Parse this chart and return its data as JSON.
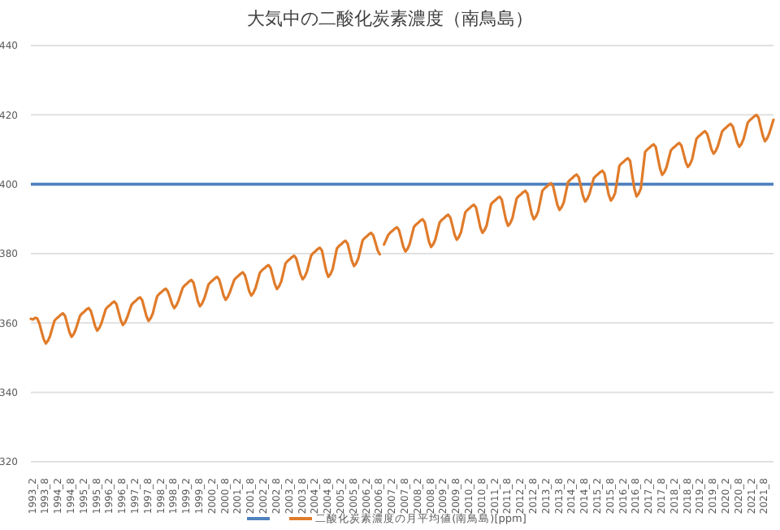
{
  "chart_data": {
    "type": "line",
    "title": "大気中の二酸化炭素濃度（南鳥島）",
    "categories": [
      null,
      "1993_2",
      null,
      null,
      null,
      null,
      null,
      "1993_8",
      null,
      null,
      null,
      null,
      null,
      "1994_2",
      null,
      null,
      null,
      null,
      null,
      "1994_8",
      null,
      null,
      null,
      null,
      null,
      "1995_2",
      null,
      null,
      null,
      null,
      null,
      "1995_8",
      null,
      null,
      null,
      null,
      null,
      "1996_2",
      null,
      null,
      null,
      null,
      null,
      "1996_8",
      null,
      null,
      null,
      null,
      null,
      "1997_2",
      null,
      null,
      null,
      null,
      null,
      "1997_8",
      null,
      null,
      null,
      null,
      null,
      "1998_2",
      null,
      null,
      null,
      null,
      null,
      "1998_8",
      null,
      null,
      null,
      null,
      null,
      "1999_2",
      null,
      null,
      null,
      null,
      null,
      "1999_8",
      null,
      null,
      null,
      null,
      null,
      "2000_2",
      null,
      null,
      null,
      null,
      null,
      "2000_8",
      null,
      null,
      null,
      null,
      null,
      "2001_2",
      null,
      null,
      null,
      null,
      null,
      "2001_8",
      null,
      null,
      null,
      null,
      null,
      "2002_2",
      null,
      null,
      null,
      null,
      null,
      "2002_8",
      null,
      null,
      null,
      null,
      null,
      "2003_2",
      null,
      null,
      null,
      null,
      null,
      "2003_8",
      null,
      null,
      null,
      null,
      null,
      "2004_2",
      null,
      null,
      null,
      null,
      null,
      "2004_8",
      null,
      null,
      null,
      null,
      null,
      "2005_2",
      null,
      null,
      null,
      null,
      null,
      "2005_8",
      null,
      null,
      null,
      null,
      null,
      "2006_2",
      null,
      null,
      null,
      null,
      null,
      "2006_8",
      null,
      null,
      null,
      null,
      null,
      "2007_2",
      null,
      null,
      null,
      null,
      null,
      "2007_8",
      null,
      null,
      null,
      null,
      null,
      "2008_2",
      null,
      null,
      null,
      null,
      null,
      "2008_8",
      null,
      null,
      null,
      null,
      null,
      "2009_2",
      null,
      null,
      null,
      null,
      null,
      "2009_8",
      null,
      null,
      null,
      null,
      null,
      "2010_2",
      null,
      null,
      null,
      null,
      null,
      "2010_8",
      null,
      null,
      null,
      null,
      null,
      "2011_2",
      null,
      null,
      null,
      null,
      null,
      "2011_8",
      null,
      null,
      null,
      null,
      null,
      "2012_2",
      null,
      null,
      null,
      null,
      null,
      "2012_8",
      null,
      null,
      null,
      null,
      null,
      "2013_2",
      null,
      null,
      null,
      null,
      null,
      "2013_8",
      null,
      null,
      null,
      null,
      null,
      "2014_2",
      null,
      null,
      null,
      null,
      null,
      "2014_8",
      null,
      null,
      null,
      null,
      null,
      "2015_2",
      null,
      null,
      null,
      null,
      null,
      "2015_8",
      null,
      null,
      null,
      null,
      null,
      "2016_2",
      null,
      null,
      null,
      null,
      null,
      "2016_8",
      null,
      null,
      null,
      null,
      null,
      "2017_2",
      null,
      null,
      null,
      null,
      null,
      "2017_8",
      null,
      null,
      null,
      null,
      null,
      "2018_2",
      null,
      null,
      null,
      null,
      null,
      "2018_8",
      null,
      null,
      null,
      null,
      null,
      "2019_2",
      null,
      null,
      null,
      null,
      null,
      "2019_8",
      null,
      null,
      null,
      null,
      null,
      "2020_2",
      null,
      null,
      null,
      null,
      null,
      "2020_8",
      null,
      null,
      null,
      null,
      null,
      "2021_2",
      null,
      null,
      null,
      null,
      null,
      "2021_8",
      null,
      null,
      null,
      null
    ],
    "series": [
      {
        "name": "二酸化炭素濃度の月平均値(南鳥島)[ppm]",
        "color": "#e07b2a",
        "values": [
          361.2,
          361.0,
          361.5,
          361.3,
          359.8,
          357.5,
          355.3,
          354.1,
          354.9,
          356.3,
          358.5,
          360.6,
          361.3,
          361.8,
          362.4,
          362.8,
          362.0,
          359.7,
          357.4,
          356.0,
          356.8,
          358.2,
          360.2,
          362.1,
          362.8,
          363.3,
          363.9,
          364.3,
          363.5,
          361.4,
          359.1,
          357.8,
          358.6,
          360.0,
          362.0,
          364.0,
          364.7,
          365.2,
          365.8,
          366.2,
          365.4,
          363.1,
          360.8,
          359.4,
          360.2,
          361.6,
          363.4,
          365.2,
          365.9,
          366.4,
          367.0,
          367.4,
          366.6,
          364.3,
          362.0,
          360.6,
          361.4,
          362.8,
          365.3,
          367.7,
          368.4,
          368.9,
          369.5,
          369.9,
          369.1,
          367.4,
          365.4,
          364.3,
          365.1,
          366.5,
          368.4,
          370.2,
          370.9,
          371.4,
          372.0,
          372.4,
          371.6,
          369.0,
          366.3,
          364.8,
          365.6,
          367.0,
          369.0,
          371.1,
          371.8,
          372.3,
          372.9,
          373.3,
          372.5,
          370.3,
          368.0,
          366.7,
          367.5,
          368.9,
          370.7,
          372.4,
          373.1,
          373.6,
          374.2,
          374.6,
          373.8,
          371.6,
          369.2,
          367.9,
          368.7,
          370.1,
          372.3,
          374.5,
          375.2,
          375.7,
          376.3,
          376.7,
          375.9,
          373.6,
          371.2,
          369.8,
          370.6,
          372.0,
          374.6,
          377.2,
          377.9,
          378.4,
          379.0,
          379.4,
          378.6,
          376.3,
          374.0,
          372.6,
          373.4,
          374.8,
          377.2,
          379.5,
          380.2,
          380.7,
          381.3,
          381.7,
          380.9,
          377.9,
          375.0,
          373.3,
          374.1,
          375.5,
          378.5,
          381.5,
          382.2,
          382.7,
          383.3,
          383.7,
          382.9,
          380.4,
          377.9,
          376.4,
          377.2,
          378.6,
          381.2,
          383.8,
          384.5,
          385.0,
          385.6,
          386.0,
          385.2,
          383.2,
          381.0,
          379.8,
          null,
          382.6,
          384.0,
          385.4,
          386.1,
          386.6,
          387.2,
          387.6,
          386.8,
          384.5,
          382.0,
          380.6,
          381.4,
          382.8,
          385.3,
          387.7,
          388.4,
          388.9,
          389.5,
          389.9,
          389.1,
          386.3,
          383.5,
          381.9,
          382.7,
          384.1,
          386.6,
          389.0,
          389.7,
          390.2,
          390.8,
          391.2,
          390.4,
          388.0,
          385.4,
          384.0,
          384.8,
          386.2,
          389.1,
          391.9,
          392.6,
          393.1,
          393.7,
          394.1,
          393.3,
          390.5,
          387.6,
          386.0,
          386.8,
          388.2,
          391.2,
          394.2,
          394.9,
          395.4,
          396.0,
          396.4,
          395.6,
          392.6,
          389.7,
          388.0,
          388.8,
          390.2,
          393.1,
          395.9,
          396.6,
          397.1,
          397.7,
          398.1,
          397.3,
          394.4,
          391.5,
          389.9,
          390.7,
          392.1,
          395.1,
          398.1,
          398.8,
          399.3,
          399.9,
          400.3,
          399.5,
          396.8,
          394.1,
          392.6,
          393.4,
          394.8,
          397.7,
          400.6,
          401.3,
          401.8,
          402.4,
          402.8,
          402.0,
          399.3,
          396.6,
          395.0,
          395.8,
          397.2,
          399.5,
          401.7,
          402.4,
          402.9,
          403.5,
          403.9,
          403.1,
          400.0,
          397.0,
          395.3,
          396.1,
          397.5,
          401.4,
          405.3,
          406.0,
          406.5,
          407.1,
          407.5,
          406.7,
          402.6,
          398.7,
          396.5,
          397.3,
          398.7,
          404.0,
          409.3,
          410.0,
          410.5,
          411.1,
          411.5,
          410.7,
          407.5,
          404.5,
          402.7,
          403.5,
          404.9,
          407.3,
          409.7,
          410.4,
          410.9,
          411.5,
          411.9,
          411.1,
          408.8,
          406.4,
          405.0,
          405.8,
          407.2,
          410.2,
          413.1,
          413.8,
          414.3,
          414.9,
          415.3,
          414.5,
          412.4,
          410.1,
          408.8,
          409.6,
          411.0,
          413.1,
          415.2,
          415.9,
          416.4,
          417.0,
          417.4,
          416.6,
          414.4,
          412.1,
          410.8,
          411.6,
          413.0,
          415.4,
          417.8,
          418.5,
          419.0,
          419.6,
          420.0,
          419.2,
          416.6,
          414.0,
          412.4,
          413.2,
          414.6,
          416.6,
          418.6
        ]
      }
    ],
    "ref_lines": [
      {
        "axis": "y",
        "value": 400,
        "color": "#4f81bd"
      }
    ],
    "ylim": [
      320,
      440
    ],
    "yticks": [
      320,
      340,
      360,
      380,
      400,
      420,
      440
    ],
    "grid": "y",
    "legend": "bottom",
    "marker": "none"
  }
}
